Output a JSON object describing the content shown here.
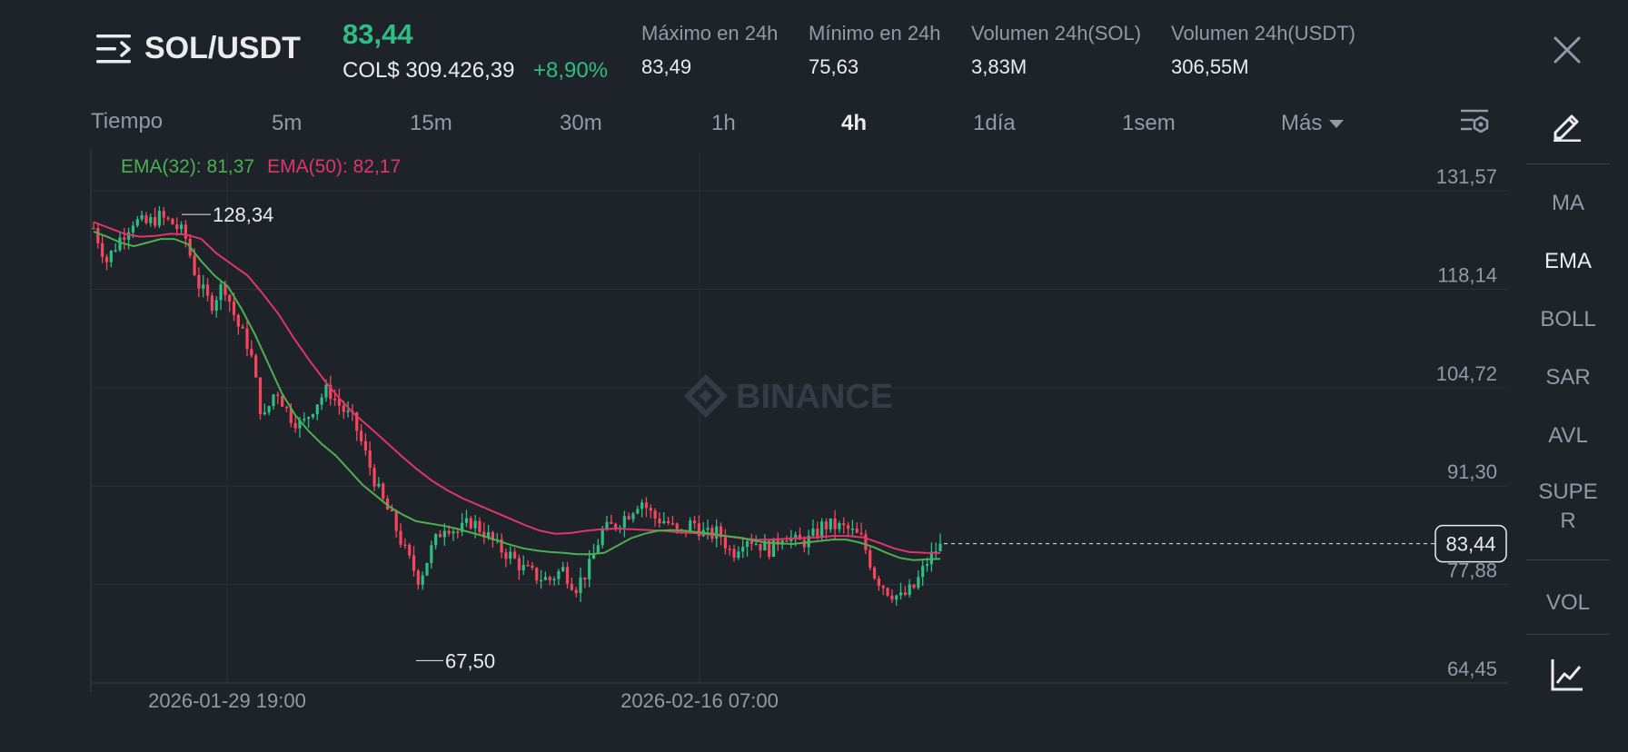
{
  "header": {
    "pair": "SOL/USDT",
    "last_price": "83,44",
    "fiat_price": "COL$ 309.426,39",
    "change_pct": "+8,90%",
    "stats": [
      {
        "label": "Máximo en 24h",
        "value": "83,49"
      },
      {
        "label": "Mínimo en 24h",
        "value": "75,63"
      },
      {
        "label": "Volumen 24h(SOL)",
        "value": "3,83M"
      },
      {
        "label": "Volumen 24h(USDT)",
        "value": "306,55M"
      }
    ]
  },
  "timeframes": {
    "label": "Tiempo",
    "items": [
      "5m",
      "15m",
      "30m",
      "1h",
      "4h",
      "1día",
      "1sem"
    ],
    "active": "4h",
    "more_label": "Más"
  },
  "indicators_panel": {
    "items": [
      "MA",
      "EMA",
      "BOLL",
      "SAR",
      "AVL",
      "SUPE",
      "R",
      "VOL"
    ],
    "active": "EMA"
  },
  "colors": {
    "up": "#2ebd85",
    "down": "#f6465d",
    "ema32": "#4caf50",
    "ema50": "#e0356a",
    "background": "#1e2329",
    "grid": "#2b3139",
    "muted_text": "#929aa5"
  },
  "icons": {
    "menu": "menu-icon",
    "close": "close-icon",
    "settings": "indicator-settings-icon",
    "pen": "pen-icon",
    "line_chart": "line-chart-icon",
    "watermark_logo": "binance-logo-icon"
  },
  "watermark": "BINANCE",
  "chart_data": {
    "type": "candlestick",
    "legend": {
      "ema32": "EMA(32): 81,37",
      "ema50": "EMA(50): 82,17"
    },
    "y_ticks": [
      131.57,
      118.14,
      104.72,
      91.3,
      77.88,
      64.45
    ],
    "y_tick_labels": [
      "131,57",
      "118,14",
      "104,72",
      "91,30",
      "77,88",
      "64,45"
    ],
    "ylim": [
      64.45,
      131.57
    ],
    "x_tick_labels": [
      "2026-01-29 19:00",
      "2026-02-16 07:00"
    ],
    "current_price": 83.44,
    "current_price_label": "83,44",
    "max_marker": {
      "value": 128.34,
      "label": "128,34"
    },
    "min_marker": {
      "value": 67.5,
      "label": "67,50"
    },
    "grid": true,
    "candles_close_path": [
      126.5,
      122,
      125,
      127.5,
      127,
      128,
      127.2,
      125.5,
      119,
      116,
      119,
      113.5,
      110,
      100,
      104.7,
      101,
      99.5,
      102.5,
      104.5,
      102,
      100,
      95,
      90,
      86.5,
      82,
      78.5,
      83,
      86.2,
      85,
      86.5,
      85,
      83,
      81.8,
      80,
      79,
      78.5,
      80,
      77.5,
      80,
      85,
      86,
      87.5,
      89.5,
      87,
      86.5,
      84.5,
      86.5,
      84.5,
      85,
      82,
      84.5,
      83.5,
      82.6,
      85,
      83.5,
      84,
      86,
      85.8,
      85.3,
      84,
      79,
      77,
      76,
      77.5,
      81,
      83.44
    ],
    "ema32_path": [
      126,
      125.3,
      124.5,
      124,
      124.5,
      125,
      125,
      124.3,
      122,
      120,
      118.5,
      115.5,
      112,
      108,
      104,
      101,
      98.8,
      97,
      95.5,
      93.5,
      91.5,
      90,
      88.5,
      87.4,
      86.5,
      86.2,
      85.9,
      85.5,
      85,
      84.5,
      83.9,
      83.3,
      82.8,
      82.5,
      82.3,
      82.2,
      82,
      82,
      82.2,
      83.2,
      84.2,
      84.8,
      85.2,
      85.3,
      85.2,
      85,
      84.8,
      84.5,
      84.3,
      83.9,
      83.6,
      83.5,
      83.4,
      83.6,
      83.8,
      84,
      84,
      83.6,
      83,
      82.2,
      81.5,
      81.2,
      81.3,
      81.37
    ],
    "ema50_path": [
      127.3,
      126.5,
      125.7,
      125.3,
      125.4,
      125.7,
      125.6,
      125,
      123,
      121.5,
      120,
      117.5,
      114.8,
      111.5,
      108.5,
      105.7,
      103.2,
      101,
      99.2,
      97.3,
      95.4,
      93.6,
      92,
      90.7,
      89.6,
      88.7,
      87.8,
      86.9,
      86,
      85.2,
      84.8,
      84.9,
      85.2,
      85.4,
      85.5,
      85.4,
      85.3,
      85.2,
      85,
      84.9,
      84.7,
      84.5,
      84.2,
      84,
      84,
      84.1,
      84.2,
      84.3,
      84.5,
      84.5,
      84.3,
      83.6,
      82.8,
      82.3,
      82.2,
      82.17
    ]
  }
}
